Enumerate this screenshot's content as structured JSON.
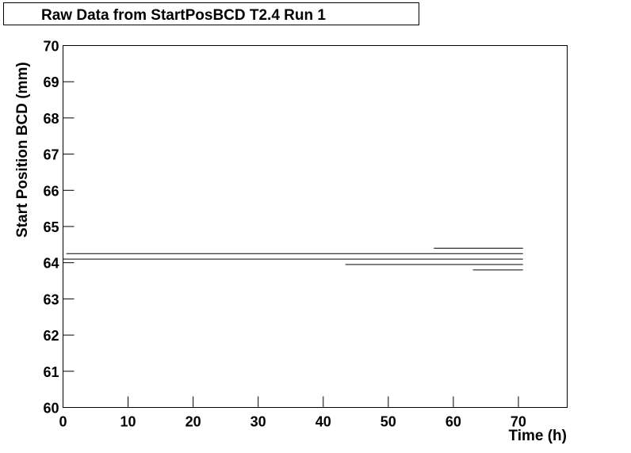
{
  "chart_data": {
    "type": "line",
    "title": "Raw Data from StartPosBCD T2.4 Run 1",
    "x_label": "Time (h)",
    "y_label": "Start Position BCD (mm)",
    "series": [
      {
        "color": "#000000",
        "x": [
          0.5,
          70.7
        ],
        "values": [
          64.25,
          64.25
        ]
      },
      {
        "color": "#000000",
        "x": [
          0,
          70.7
        ],
        "values": [
          64.1,
          64.1
        ]
      },
      {
        "color": "#000000",
        "x": [
          57,
          70.7
        ],
        "values": [
          64.4,
          64.4
        ]
      },
      {
        "color": "#000000",
        "x": [
          43.4,
          70.7
        ],
        "values": [
          63.95,
          63.95
        ]
      },
      {
        "color": "#000000",
        "x": [
          63,
          70.7
        ],
        "values": [
          63.8,
          63.8
        ]
      }
    ],
    "xlim": [
      0,
      77.5
    ],
    "xticks": [
      0,
      10,
      20,
      30,
      40,
      50,
      60,
      70
    ],
    "ylim": [
      60,
      70
    ],
    "yticks": [
      60,
      61,
      62,
      63,
      64,
      65,
      66,
      67,
      68,
      69,
      70
    ]
  }
}
